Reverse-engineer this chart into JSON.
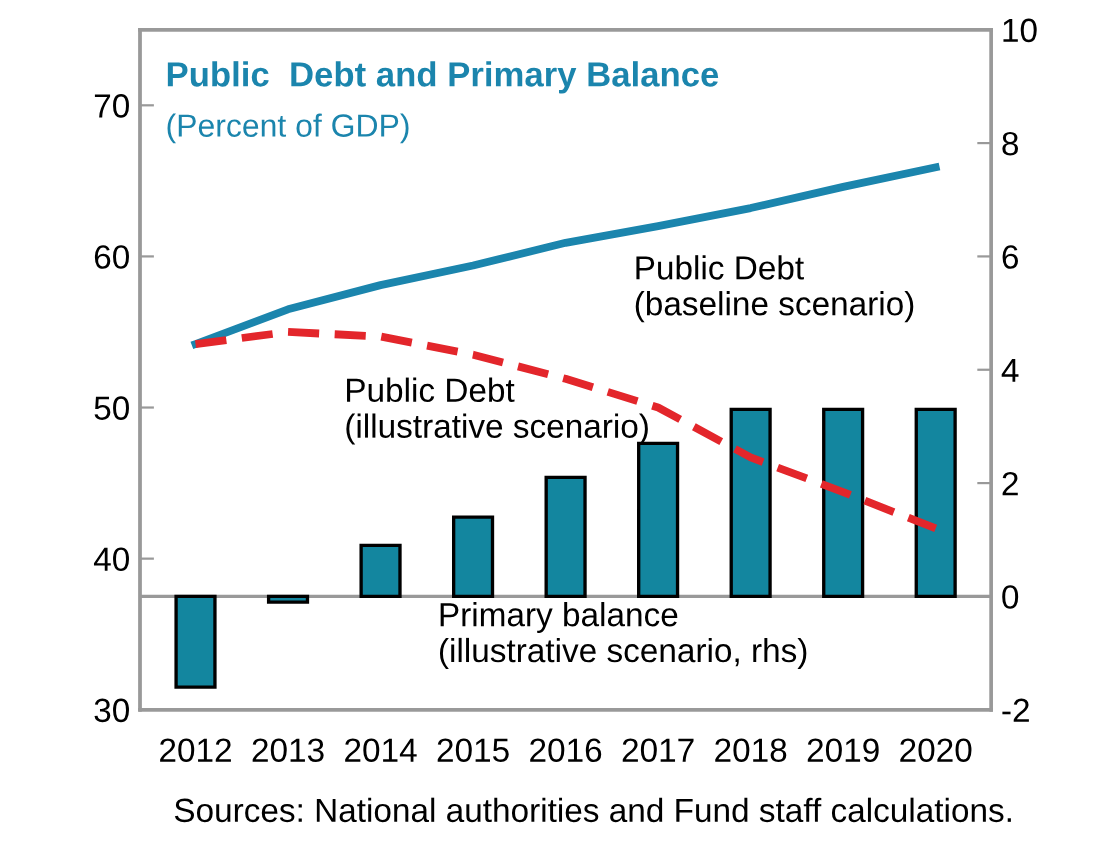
{
  "chart_data": {
    "type": "line",
    "title": "Public  Debt and Primary Balance",
    "subtitle": "(Percent of GDP)",
    "categories": [
      "2012",
      "2013",
      "2014",
      "2015",
      "2016",
      "2017",
      "2018",
      "2019",
      "2020"
    ],
    "series": [
      {
        "type": "bar",
        "axis": "y2",
        "color": "#13869f",
        "values": [
          -1.6,
          -0.1,
          0.9,
          1.4,
          2.1,
          2.7,
          3.3,
          3.3,
          3.3
        ]
      },
      {
        "color": "#1b85ad",
        "line_style": "solid",
        "values": [
          54.2,
          56.5,
          58.1,
          59.4,
          60.9,
          62.0,
          63.2,
          64.6,
          65.9
        ]
      },
      {
        "color": "#e3262b",
        "line_style": "dashed",
        "values": [
          54.2,
          55.0,
          54.7,
          53.5,
          51.9,
          50.0,
          46.7,
          44.4,
          42.0
        ]
      }
    ],
    "ylim": [
      30,
      75
    ],
    "yticks": [
      30,
      40,
      50,
      60,
      70
    ],
    "y2lim": [
      -2,
      10
    ],
    "y2ticks": [
      -2,
      0,
      2,
      4,
      6,
      8,
      10
    ],
    "ref_lines": [
      {
        "axis": "y2",
        "value": 0,
        "color": "#999999"
      }
    ],
    "annotations": [
      "Public Debt\n(baseline scenario)",
      "Public Debt\n(illustrative scenario)",
      "Primary balance\n(illustrative scenario, rhs)",
      "Sources: National authorities and Fund staff calculations."
    ],
    "legend": false
  }
}
